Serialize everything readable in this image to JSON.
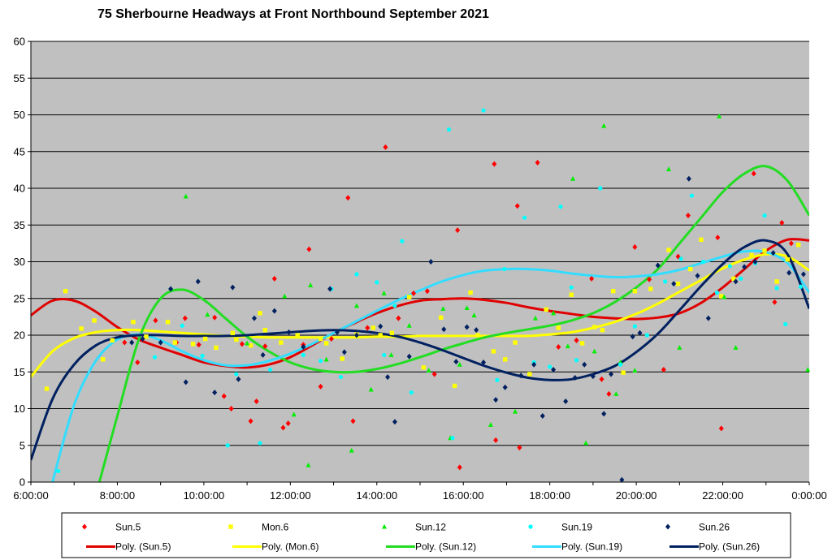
{
  "chart_data": {
    "type": "scatter",
    "title": "75 Sherbourne Headways at Front Northbound September 2021",
    "xlabel": "",
    "ylabel": "",
    "xlim": [
      "6:00:00",
      "0:00:00"
    ],
    "ylim": [
      0,
      60
    ],
    "x_ticks": [
      "6:00:00",
      "8:00:00",
      "10:00:00",
      "12:00:00",
      "14:00:00",
      "16:00:00",
      "18:00:00",
      "20:00:00",
      "22:00:00",
      "0:00:00"
    ],
    "y_ticks": [
      "0",
      "5",
      "10",
      "15",
      "20",
      "25",
      "30",
      "35",
      "40",
      "45",
      "50",
      "55",
      "60"
    ],
    "grid": "horizontal",
    "plot_background": "#c0c0c0",
    "legend_position": "bottom",
    "series": [
      {
        "name": "Sun.5",
        "color": "#ff0000",
        "marker": "diamond",
        "x": [
          "8:10",
          "8:28",
          "8:53",
          "9:22",
          "9:34",
          "9:53",
          "10:15",
          "10:28",
          "10:38",
          "10:53",
          "11:05",
          "11:13",
          "11:25",
          "11:38",
          "11:50",
          "11:57",
          "12:18",
          "12:26",
          "12:42",
          "12:57",
          "13:20",
          "13:27",
          "13:47",
          "14:12",
          "14:30",
          "14:51",
          "15:10",
          "15:20",
          "15:52",
          "15:55",
          "16:43",
          "16:45",
          "17:15",
          "17:18",
          "17:43",
          "18:12",
          "18:37",
          "18:58",
          "19:12",
          "19:22",
          "19:58",
          "20:18",
          "20:38",
          "20:58",
          "21:12",
          "21:53",
          "21:58",
          "22:43",
          "23:12",
          "23:22",
          "23:35"
        ],
        "y": [
          19,
          16.3,
          22,
          19,
          22.3,
          18.7,
          22.4,
          11.7,
          10,
          18.8,
          8.3,
          11,
          18.5,
          27.7,
          7.4,
          8,
          18.7,
          31.7,
          13,
          19.5,
          38.7,
          8.3,
          21,
          45.6,
          22.3,
          25.7,
          26,
          14.7,
          34.3,
          2,
          43.3,
          5.7,
          37.6,
          4.7,
          43.5,
          18.4,
          19.3,
          27.7,
          14,
          12,
          32,
          27.6,
          15.3,
          30.7,
          36.3,
          33.3,
          7.3,
          42,
          24.5,
          35.3,
          32.5
        ]
      },
      {
        "name": "Mon.6",
        "color": "#ffff00",
        "marker": "square",
        "x": [
          "6:22",
          "6:48",
          "7:10",
          "7:28",
          "7:40",
          "7:53",
          "8:22",
          "8:40",
          "9:10",
          "9:20",
          "9:45",
          "10:02",
          "10:17",
          "10:40",
          "10:45",
          "11:05",
          "11:18",
          "11:25",
          "11:47",
          "12:10",
          "12:42",
          "12:50",
          "13:12",
          "13:32",
          "13:55",
          "14:05",
          "14:21",
          "14:45",
          "15:05",
          "15:29",
          "15:48",
          "16:10",
          "16:20",
          "16:42",
          "16:58",
          "17:12",
          "17:32",
          "17:55",
          "18:12",
          "18:30",
          "18:45",
          "19:02",
          "19:13",
          "19:28",
          "19:42",
          "19:58",
          "20:20",
          "20:45",
          "20:58",
          "21:15",
          "21:30",
          "21:58",
          "22:15",
          "22:40",
          "22:58",
          "23:15",
          "23:30",
          "23:45"
        ],
        "y": [
          12.7,
          26,
          20.9,
          22,
          16.7,
          19.3,
          21.8,
          19.8,
          21.8,
          19,
          18.8,
          19.5,
          18.3,
          20.3,
          19.4,
          18.6,
          23,
          20.7,
          19,
          20,
          19.5,
          18.9,
          16.8,
          20.1,
          21,
          20,
          20.3,
          25.2,
          15.6,
          22.4,
          13.1,
          25.8,
          20,
          17.8,
          16.7,
          19,
          14.7,
          23.5,
          21,
          25.5,
          18.9,
          21.1,
          20.7,
          26,
          14.9,
          26,
          26.3,
          31.6,
          27,
          29,
          33,
          25.3,
          27.7,
          30.9,
          31.5,
          27.3,
          30.3,
          32.3
        ]
      },
      {
        "name": "Sun.12",
        "color": "#00ee00",
        "marker": "triangle",
        "x": [
          "9:35",
          "10:05",
          "11:00",
          "11:52",
          "12:05",
          "12:25",
          "12:28",
          "12:50",
          "13:25",
          "13:32",
          "13:52",
          "14:10",
          "14:20",
          "14:45",
          "15:12",
          "15:32",
          "15:42",
          "15:55",
          "16:05",
          "16:15",
          "16:38",
          "17:12",
          "17:40",
          "18:05",
          "18:25",
          "18:32",
          "18:50",
          "19:02",
          "19:15",
          "19:32",
          "19:38",
          "19:58",
          "20:45",
          "21:00",
          "21:55",
          "22:02",
          "22:18",
          "23:58"
        ],
        "y": [
          38.9,
          22.8,
          18.9,
          25.3,
          9.2,
          2.3,
          26.8,
          16.7,
          4.3,
          24,
          12.6,
          25.7,
          17.3,
          21.3,
          15.2,
          23.6,
          6,
          16,
          23.7,
          22.7,
          7.8,
          9.6,
          22.3,
          23,
          18.5,
          41.3,
          5.3,
          17.8,
          48.5,
          12,
          16.3,
          15.2,
          42.6,
          18.3,
          49.8,
          25.2,
          18.3,
          15.3
        ]
      },
      {
        "name": "Sun.19",
        "color": "#00ffff",
        "marker": "circle",
        "x": [
          "6:38",
          "8:52",
          "9:30",
          "9:58",
          "10:33",
          "10:45",
          "11:18",
          "11:32",
          "12:18",
          "12:42",
          "12:57",
          "13:10",
          "13:32",
          "14:00",
          "14:10",
          "14:25",
          "14:35",
          "14:48",
          "15:40",
          "15:45",
          "16:28",
          "16:47",
          "16:57",
          "17:25",
          "17:38",
          "18:00",
          "18:15",
          "18:30",
          "18:37",
          "19:10",
          "19:38",
          "19:58",
          "20:15",
          "20:40",
          "21:02",
          "21:17",
          "21:33",
          "21:52",
          "22:10",
          "22:25",
          "22:45",
          "22:58",
          "23:15",
          "23:27",
          "23:48"
        ],
        "y": [
          1.5,
          17,
          21.3,
          17.2,
          5,
          14.7,
          5.3,
          15.3,
          17.3,
          16.5,
          26.3,
          14.3,
          28.3,
          27.2,
          17.3,
          24,
          32.8,
          12.2,
          48,
          6,
          50.6,
          13.9,
          29,
          36,
          16.3,
          15.7,
          37.5,
          26.5,
          16.6,
          40,
          16,
          21.2,
          20,
          27.3,
          30.4,
          39,
          30,
          25.8,
          29.4,
          27.7,
          29.8,
          36.3,
          26.4,
          21.5,
          26.6
        ]
      },
      {
        "name": "Sun.26",
        "color": "#002060",
        "marker": "diamond",
        "x": [
          "8:20",
          "8:35",
          "9:00",
          "9:14",
          "9:35",
          "9:52",
          "10:15",
          "10:40",
          "10:48",
          "11:10",
          "11:22",
          "11:38",
          "11:58",
          "12:18",
          "12:55",
          "13:05",
          "13:15",
          "13:32",
          "14:05",
          "14:15",
          "14:25",
          "14:45",
          "15:15",
          "15:33",
          "15:50",
          "16:05",
          "16:18",
          "16:28",
          "16:45",
          "16:58",
          "17:20",
          "17:38",
          "17:50",
          "18:05",
          "18:22",
          "18:35",
          "18:48",
          "19:00",
          "19:15",
          "19:25",
          "19:40",
          "19:55",
          "20:05",
          "20:30",
          "20:52",
          "21:13",
          "21:25",
          "21:40",
          "22:18",
          "22:30",
          "22:45",
          "23:10",
          "23:32",
          "23:52"
        ],
        "y": [
          19,
          19.5,
          19,
          26.3,
          13.6,
          27.3,
          12.2,
          26.5,
          14,
          22.3,
          17.3,
          23.3,
          20.4,
          18.4,
          26.3,
          20.4,
          17.7,
          20,
          21.2,
          14.3,
          8.2,
          17.1,
          30,
          20.8,
          16.4,
          21.1,
          20.7,
          16.3,
          11.2,
          12.9,
          14.5,
          16,
          9,
          15.3,
          11,
          14.2,
          16,
          14.4,
          9.3,
          14.7,
          0.3,
          19.8,
          20.3,
          29.5,
          27,
          41.3,
          28.1,
          22.3,
          27.3,
          29.3,
          30,
          31.2,
          28.5,
          28.3
        ]
      }
    ],
    "trendlines": [
      {
        "name": "Poly. (Sun.5)",
        "color": "#e00000",
        "x": [
          "6:00",
          "6:30",
          "7:00",
          "7:30",
          "8:00",
          "8:30",
          "9:00",
          "9:30",
          "10:00",
          "10:30",
          "11:00",
          "11:30",
          "12:00",
          "12:30",
          "13:00",
          "13:30",
          "14:00",
          "14:30",
          "15:00",
          "15:30",
          "16:00",
          "16:30",
          "17:00",
          "17:30",
          "18:00",
          "18:30",
          "19:00",
          "19:30",
          "20:00",
          "20:30",
          "21:00",
          "21:30",
          "22:00",
          "22:30",
          "23:00",
          "23:30",
          "24:00"
        ],
        "y": [
          22.7,
          24.7,
          24.7,
          23.2,
          21.1,
          19.4,
          18.3,
          17.3,
          16.3,
          15.8,
          15.6,
          16,
          17,
          18.6,
          20.3,
          21.7,
          23,
          24,
          24.7,
          24.9,
          25,
          24.8,
          24.4,
          23.8,
          23.3,
          22.9,
          22.5,
          22.3,
          22.2,
          22.4,
          23,
          24.4,
          26.5,
          29,
          31.5,
          33,
          32.9
        ]
      },
      {
        "name": "Poly. (Mon.6)",
        "color": "#ffff00",
        "x": [
          "6:00",
          "6:30",
          "7:00",
          "7:30",
          "8:00",
          "8:30",
          "9:00",
          "9:30",
          "10:00",
          "10:30",
          "11:00",
          "11:30",
          "12:00",
          "12:30",
          "13:00",
          "13:30",
          "14:00",
          "14:30",
          "15:00",
          "15:30",
          "16:00",
          "16:30",
          "17:00",
          "17:30",
          "18:00",
          "18:30",
          "19:00",
          "19:30",
          "20:00",
          "20:30",
          "21:00",
          "21:30",
          "22:00",
          "22:30",
          "23:00",
          "23:30",
          "24:00"
        ],
        "y": [
          14.3,
          17.8,
          19.6,
          20.4,
          20.7,
          20.7,
          20.5,
          20.3,
          20.1,
          19.9,
          19.8,
          19.7,
          19.7,
          19.7,
          19.7,
          19.7,
          19.8,
          19.8,
          19.9,
          19.9,
          19.9,
          19.9,
          19.9,
          19.9,
          20.1,
          20.4,
          21,
          21.8,
          22.9,
          24.3,
          25.9,
          27.5,
          29.1,
          30.3,
          31,
          30.7,
          28.8
        ]
      },
      {
        "name": "Poly. (Sun.12)",
        "color": "#22dd22",
        "x": [
          "7:35",
          "8:00",
          "8:30",
          "9:00",
          "9:30",
          "10:00",
          "10:30",
          "11:00",
          "11:30",
          "12:00",
          "12:30",
          "13:00",
          "13:30",
          "14:00",
          "14:30",
          "15:00",
          "15:30",
          "16:00",
          "16:30",
          "17:00",
          "17:30",
          "18:00",
          "18:30",
          "19:00",
          "19:30",
          "20:00",
          "20:30",
          "21:00",
          "21:30",
          "22:00",
          "22:30",
          "23:00",
          "23:30",
          "24:00"
        ],
        "y": [
          0,
          9,
          19.5,
          25,
          26.2,
          24.8,
          22.3,
          19.8,
          17.8,
          16.3,
          15.4,
          15,
          15,
          15.4,
          16.1,
          17,
          18,
          18.9,
          19.7,
          20.3,
          20.8,
          21.3,
          22,
          23,
          24.5,
          26.5,
          29,
          32.5,
          36,
          39.5,
          42,
          43,
          41,
          36.3
        ]
      },
      {
        "name": "Poly. (Sun.19)",
        "color": "#33ddff",
        "x": [
          "6:30",
          "7:00",
          "7:30",
          "8:00",
          "8:30",
          "9:00",
          "9:30",
          "10:00",
          "10:30",
          "11:00",
          "11:30",
          "12:00",
          "12:30",
          "13:00",
          "13:30",
          "14:00",
          "14:30",
          "15:00",
          "15:30",
          "16:00",
          "16:30",
          "17:00",
          "17:30",
          "18:00",
          "18:30",
          "19:00",
          "19:30",
          "20:00",
          "20:30",
          "21:00",
          "21:30",
          "22:00",
          "22:30",
          "23:00",
          "23:30",
          "24:00"
        ],
        "y": [
          0,
          10.5,
          16.5,
          19.4,
          20.1,
          19.3,
          17.8,
          16.6,
          15.9,
          15.9,
          16.5,
          17.5,
          18.8,
          20.3,
          21.8,
          23.3,
          24.8,
          26.1,
          27.3,
          28.2,
          28.8,
          29,
          29,
          28.8,
          28.4,
          28.1,
          27.9,
          28,
          28.3,
          28.9,
          29.8,
          30.7,
          31.4,
          31.3,
          29.8,
          25.8
        ]
      },
      {
        "name": "Poly. (Sun.26)",
        "color": "#002060",
        "x": [
          "6:00",
          "6:30",
          "7:00",
          "7:30",
          "8:00",
          "8:30",
          "9:00",
          "9:30",
          "10:00",
          "10:30",
          "11:00",
          "11:30",
          "12:00",
          "12:30",
          "13:00",
          "13:30",
          "14:00",
          "14:30",
          "15:00",
          "15:30",
          "16:00",
          "16:30",
          "17:00",
          "17:30",
          "18:00",
          "18:30",
          "19:00",
          "19:30",
          "20:00",
          "20:30",
          "21:00",
          "21:30",
          "22:00",
          "22:30",
          "23:00",
          "23:30",
          "24:00"
        ],
        "y": [
          3,
          11.3,
          16,
          18.6,
          19.7,
          20,
          20,
          19.9,
          19.9,
          19.9,
          20,
          20.2,
          20.4,
          20.6,
          20.7,
          20.6,
          20.3,
          19.8,
          19,
          18,
          16.9,
          15.8,
          14.9,
          14.2,
          13.9,
          14,
          14.7,
          15.8,
          17.7,
          20.2,
          23.4,
          26.7,
          29.7,
          32,
          32.9,
          31,
          23.6
        ]
      }
    ]
  }
}
